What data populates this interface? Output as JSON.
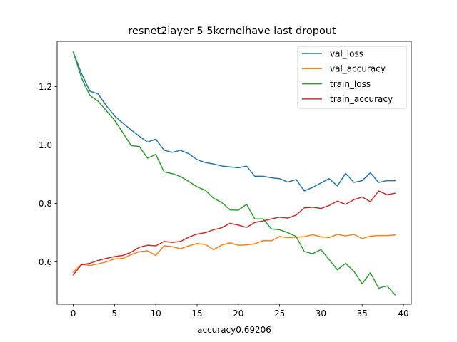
{
  "chart_data": {
    "type": "line",
    "title": "resnet2layer  5 5kernelhave last dropout",
    "xlabel": "accuracy0.69206",
    "ylabel": "",
    "xlim": [
      -1.95,
      40.95
    ],
    "ylim": [
      0.455,
      1.355
    ],
    "xticks": [
      0,
      5,
      10,
      15,
      20,
      25,
      30,
      35,
      40
    ],
    "xtick_labels": [
      "0",
      "5",
      "10",
      "15",
      "20",
      "25",
      "30",
      "35",
      "40"
    ],
    "yticks": [
      0.6,
      0.8,
      1.0,
      1.2
    ],
    "ytick_labels": [
      "0.6",
      "0.8",
      "1.0",
      "1.2"
    ],
    "grid": false,
    "legend_position": "top-right",
    "x": [
      0,
      1,
      2,
      3,
      4,
      5,
      6,
      7,
      8,
      9,
      10,
      11,
      12,
      13,
      14,
      15,
      16,
      17,
      18,
      19,
      20,
      21,
      22,
      23,
      24,
      25,
      26,
      27,
      28,
      29,
      30,
      31,
      32,
      33,
      34,
      35,
      36,
      37,
      38,
      39
    ],
    "series": [
      {
        "name": "val_loss",
        "color": "#1f77b4",
        "values": [
          1.318,
          1.245,
          1.185,
          1.175,
          1.135,
          1.1,
          1.075,
          1.052,
          1.03,
          1.01,
          1.02,
          0.982,
          0.975,
          0.982,
          0.97,
          0.95,
          0.94,
          0.935,
          0.928,
          0.925,
          0.922,
          0.928,
          0.893,
          0.893,
          0.888,
          0.885,
          0.873,
          0.882,
          0.843,
          0.855,
          0.87,
          0.885,
          0.86,
          0.903,
          0.872,
          0.878,
          0.905,
          0.872,
          0.878,
          0.878
        ]
      },
      {
        "name": "val_accuracy",
        "color": "#ff7f0e",
        "values": [
          0.565,
          0.592,
          0.588,
          0.593,
          0.6,
          0.61,
          0.612,
          0.625,
          0.635,
          0.638,
          0.622,
          0.655,
          0.652,
          0.645,
          0.655,
          0.663,
          0.66,
          0.642,
          0.658,
          0.665,
          0.657,
          0.658,
          0.662,
          0.673,
          0.672,
          0.687,
          0.683,
          0.685,
          0.686,
          0.693,
          0.686,
          0.683,
          0.694,
          0.689,
          0.694,
          0.68,
          0.688,
          0.69,
          0.69,
          0.692
        ]
      },
      {
        "name": "train_loss",
        "color": "#2ca02c",
        "values": [
          1.318,
          1.23,
          1.17,
          1.15,
          1.118,
          1.085,
          1.043,
          0.998,
          0.995,
          0.955,
          0.968,
          0.908,
          0.902,
          0.892,
          0.875,
          0.857,
          0.845,
          0.818,
          0.803,
          0.778,
          0.777,
          0.797,
          0.747,
          0.747,
          0.713,
          0.71,
          0.7,
          0.687,
          0.635,
          0.628,
          0.642,
          0.608,
          0.573,
          0.595,
          0.568,
          0.525,
          0.563,
          0.51,
          0.518,
          0.487
        ]
      },
      {
        "name": "train_accuracy",
        "color": "#d62728",
        "values": [
          0.556,
          0.59,
          0.595,
          0.605,
          0.612,
          0.618,
          0.622,
          0.633,
          0.65,
          0.657,
          0.655,
          0.67,
          0.667,
          0.67,
          0.685,
          0.695,
          0.7,
          0.71,
          0.717,
          0.732,
          0.726,
          0.718,
          0.735,
          0.74,
          0.747,
          0.753,
          0.75,
          0.76,
          0.785,
          0.787,
          0.783,
          0.793,
          0.808,
          0.797,
          0.813,
          0.822,
          0.806,
          0.843,
          0.83,
          0.835
        ]
      }
    ]
  }
}
